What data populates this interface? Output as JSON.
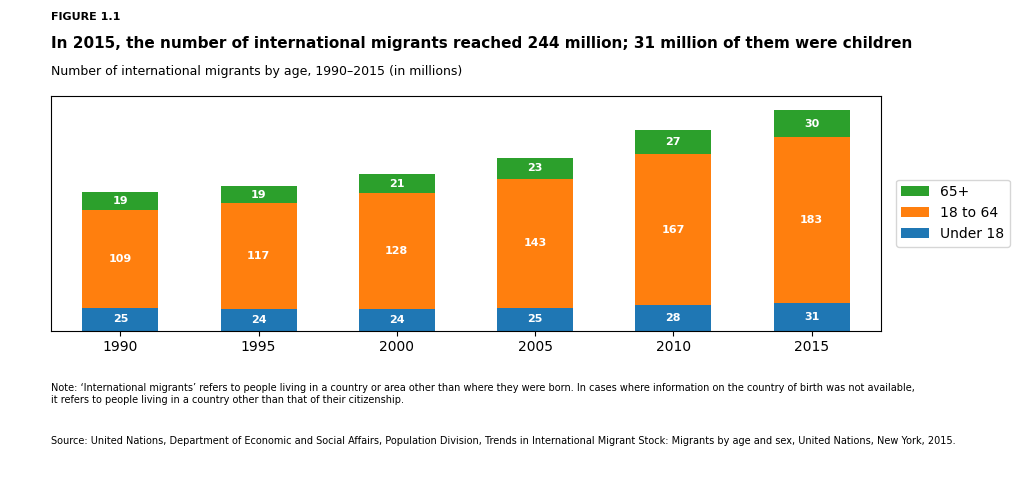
{
  "chart_data": {
    "type": "bar",
    "stacked": true,
    "title": "In 2015, the number of international migrants reached 244 million; 31 million of them were children",
    "subtitle": "Number of international migrants by age, 1990–2015 (in millions)",
    "annotations": [
      "FIGURE 1.1",
      "Note: ‘International migrants’ refers to people living in a country or area other than where they were born. In cases where information on the country of birth was not available,\nit refers to people living in a country other than that of their citizenship.",
      "Source: United Nations, Department of Economic and Social Affairs, Population Division, Trends in International Migrant Stock: Migrants by age and sex, United Nations, New York, 2015."
    ],
    "categories": [
      "1990",
      "1995",
      "2000",
      "2005",
      "2010",
      "2015"
    ],
    "series": [
      {
        "name": "Under 18",
        "values": [
          25,
          24,
          24,
          25,
          28,
          31
        ]
      },
      {
        "name": "18 to 64",
        "values": [
          109,
          117,
          128,
          143,
          167,
          183
        ]
      },
      {
        "name": "65+",
        "values": [
          19,
          19,
          21,
          23,
          27,
          30
        ]
      }
    ],
    "ylim": [
      0,
      260
    ],
    "data_labels": true,
    "tick_labels": "x",
    "legend": "right"
  }
}
